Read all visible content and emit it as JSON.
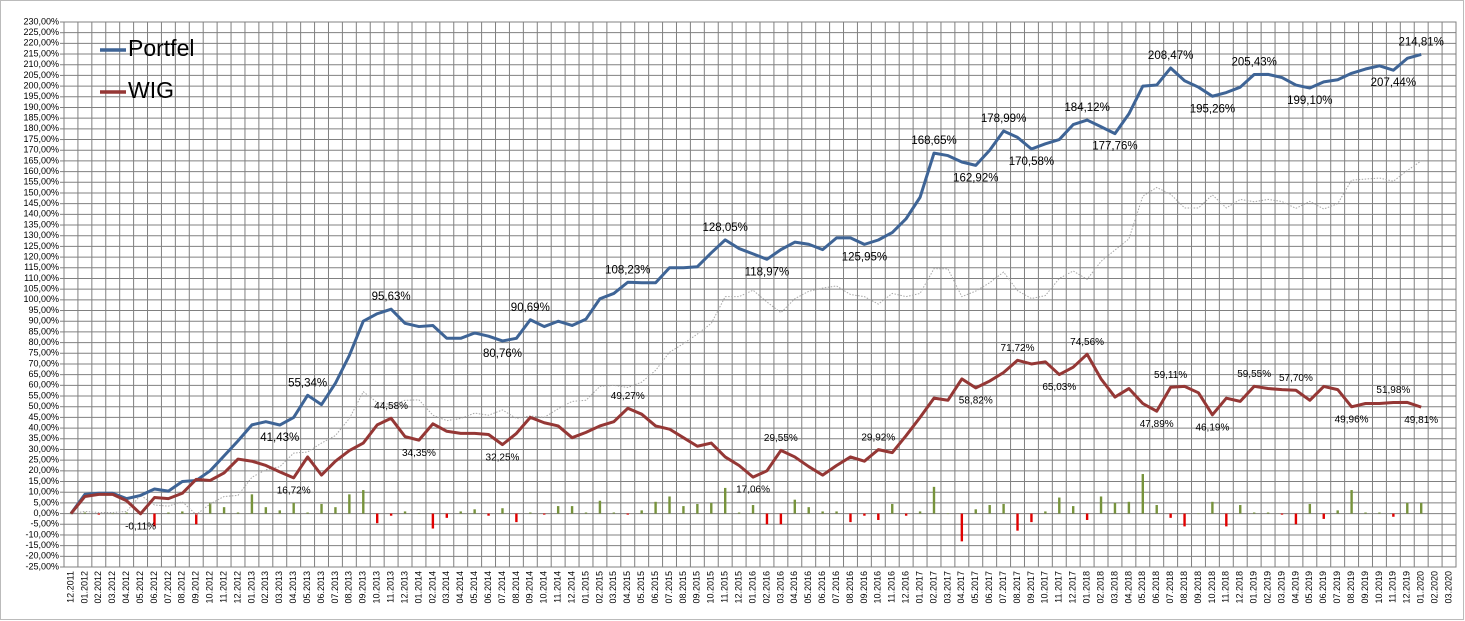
{
  "chart_data": {
    "type": "line",
    "legend": "upper left",
    "grid": true,
    "ylim": [
      -25,
      230
    ],
    "yticks": [
      {
        "value": -25,
        "label": "-25,00%"
      },
      {
        "value": -20,
        "label": "-20,00%"
      },
      {
        "value": -15,
        "label": "-15,00%"
      },
      {
        "value": -10,
        "label": "-10,00%"
      },
      {
        "value": -5,
        "label": "-5,00%"
      },
      {
        "value": 0,
        "label": "0,00%"
      },
      {
        "value": 5,
        "label": "5,00%"
      },
      {
        "value": 10,
        "label": "10,00%"
      },
      {
        "value": 15,
        "label": "15,00%"
      },
      {
        "value": 20,
        "label": "20,00%"
      },
      {
        "value": 25,
        "label": "25,00%"
      },
      {
        "value": 30,
        "label": "30,00%"
      },
      {
        "value": 35,
        "label": "35,00%"
      },
      {
        "value": 40,
        "label": "40,00%"
      },
      {
        "value": 45,
        "label": "45,00%"
      },
      {
        "value": 50,
        "label": "50,00%"
      },
      {
        "value": 55,
        "label": "55,00%"
      },
      {
        "value": 60,
        "label": "60,00%"
      },
      {
        "value": 65,
        "label": "65,00%"
      },
      {
        "value": 70,
        "label": "70,00%"
      },
      {
        "value": 75,
        "label": "75,00%"
      },
      {
        "value": 80,
        "label": "80,00%"
      },
      {
        "value": 85,
        "label": "85,00%"
      },
      {
        "value": 90,
        "label": "90,00%"
      },
      {
        "value": 95,
        "label": "95,00%"
      },
      {
        "value": 100,
        "label": "100,00%"
      },
      {
        "value": 105,
        "label": "105,00%"
      },
      {
        "value": 110,
        "label": "110,00%"
      },
      {
        "value": 115,
        "label": "115,00%"
      },
      {
        "value": 120,
        "label": "120,00%"
      },
      {
        "value": 125,
        "label": "125,00%"
      },
      {
        "value": 130,
        "label": "130,00%"
      },
      {
        "value": 135,
        "label": "135,00%"
      },
      {
        "value": 140,
        "label": "140,00%"
      },
      {
        "value": 145,
        "label": "145,00%"
      },
      {
        "value": 150,
        "label": "150,00%"
      },
      {
        "value": 155,
        "label": "155,00%"
      },
      {
        "value": 160,
        "label": "160,00%"
      },
      {
        "value": 165,
        "label": "165,00%"
      },
      {
        "value": 170,
        "label": "170,00%"
      },
      {
        "value": 175,
        "label": "175,00%"
      },
      {
        "value": 180,
        "label": "180,00%"
      },
      {
        "value": 185,
        "label": "185,00%"
      },
      {
        "value": 190,
        "label": "190,00%"
      },
      {
        "value": 195,
        "label": "195,00%"
      },
      {
        "value": 200,
        "label": "200,00%"
      },
      {
        "value": 205,
        "label": "205,00%"
      },
      {
        "value": 210,
        "label": "210,00%"
      },
      {
        "value": 215,
        "label": "215,00%"
      },
      {
        "value": 220,
        "label": "220,00%"
      },
      {
        "value": 225,
        "label": "225,00%"
      },
      {
        "value": 230,
        "label": "230,00%"
      }
    ],
    "categories": [
      "12.2011",
      "01.2012",
      "02.2012",
      "03.2012",
      "04.2012",
      "05.2012",
      "06.2012",
      "07.2012",
      "08.2012",
      "09.2012",
      "10.2012",
      "11.2012",
      "12.2012",
      "01.2013",
      "02.2013",
      "03.2013",
      "04.2013",
      "05.2013",
      "06.2013",
      "07.2013",
      "08.2013",
      "09.2013",
      "10.2013",
      "11.2013",
      "12.2013",
      "01.2014",
      "02.2014",
      "03.2014",
      "04.2014",
      "05.2014",
      "06.2014",
      "07.2014",
      "08.2014",
      "09.2014",
      "10.2014",
      "11.2014",
      "12.2014",
      "01.2015",
      "02.2015",
      "03.2015",
      "04.2015",
      "05.2015",
      "06.2015",
      "07.2015",
      "08.2015",
      "09.2015",
      "10.2015",
      "11.2015",
      "12.2015",
      "01.2016",
      "02.2016",
      "03.2016",
      "04.2016",
      "05.2016",
      "06.2016",
      "07.2016",
      "08.2016",
      "09.2016",
      "10.2016",
      "11.2016",
      "12.2016",
      "01.2017",
      "02.2017",
      "03.2017",
      "04.2017",
      "05.2017",
      "06.2017",
      "07.2017",
      "08.2017",
      "09.2017",
      "10.2017",
      "11.2017",
      "12.2017",
      "01.2018",
      "02.2018",
      "03.2018",
      "04.2018",
      "05.2018",
      "06.2018",
      "07.2018",
      "08.2018",
      "09.2018",
      "10.2018",
      "11.2018",
      "12.2018",
      "01.2019",
      "02.2019",
      "03.2019",
      "04.2019",
      "05.2019",
      "06.2019",
      "07.2019",
      "08.2019",
      "09.2019",
      "10.2019",
      "11.2019",
      "12.2019",
      "01.2020",
      "02.2020",
      "03.2020"
    ],
    "bars": {
      "color": "#77933c",
      "negative_color": "#e00000",
      "values": [
        0,
        0.5,
        -0.5,
        0,
        0.5,
        1,
        -6,
        0.5,
        1,
        -5,
        5,
        3,
        0.5,
        9,
        3,
        1.5,
        5,
        0.5,
        4.5,
        3,
        9,
        11,
        -4.5,
        -1,
        1,
        0.2,
        -7,
        -2,
        1,
        2,
        -1,
        2.5,
        -4,
        0.5,
        -0.5,
        3.5,
        3.5,
        0.5,
        6,
        0.5,
        -0.5,
        1.5,
        5.5,
        8,
        3.5,
        4.5,
        5,
        12,
        0.5,
        4,
        -5,
        -5,
        6.5,
        3,
        1,
        1,
        -4,
        -1,
        -3,
        4.5,
        -1,
        1,
        12.5,
        0,
        -13,
        2,
        4,
        4.5,
        -8,
        -4,
        1,
        7.5,
        3.5,
        -3,
        8,
        5,
        5.5,
        18.5,
        4,
        -2,
        -6,
        0,
        5.5,
        -6,
        4,
        0.5,
        0.5,
        -0.5,
        -5,
        4.5,
        -2.5,
        1.5,
        11,
        0.5,
        0.5,
        -1.5,
        5,
        5,
        null,
        null
      ]
    },
    "difference": {
      "color": "#a6a6a6",
      "values": [
        0,
        1,
        0.5,
        0.5,
        1,
        8.6,
        4,
        3.5,
        5.5,
        -0.5,
        4.5,
        8,
        8.5,
        17,
        20.5,
        21.9,
        28.3,
        28.8,
        33,
        36.5,
        44.5,
        57,
        52,
        51,
        53,
        53.2,
        46,
        43.5,
        44.5,
        47,
        46,
        48.5,
        44.5,
        45.7,
        45,
        49,
        52.5,
        53,
        59.5,
        60,
        59,
        61.5,
        67,
        75.5,
        79.5,
        84,
        89,
        101.5,
        101.5,
        104.5,
        99,
        94,
        100.5,
        104,
        105.5,
        106.5,
        102.5,
        101.5,
        98,
        103,
        101.5,
        103,
        114.6,
        114.5,
        101.5,
        104.1,
        108,
        113,
        104.3,
        100.6,
        102,
        110,
        113.5,
        109.6,
        118,
        123.3,
        128.5,
        148.5,
        152.6,
        149.4,
        143,
        143,
        149.1,
        143,
        147,
        145.9,
        147,
        146,
        142.8,
        146.1,
        142.5,
        145,
        156,
        156.5,
        157,
        155.5,
        160.5,
        165,
        null,
        null
      ]
    },
    "series": [
      {
        "name": "Portfel",
        "color": "#3e6496",
        "values": [
          0,
          9,
          9.5,
          9.5,
          7,
          8.5,
          11.5,
          10.5,
          15,
          15.5,
          20,
          27,
          34,
          41.5,
          43,
          41.43,
          45,
          55.34,
          51,
          61,
          74,
          90,
          93.5,
          95.63,
          89,
          87.5,
          88,
          82,
          82,
          84.5,
          83,
          80.76,
          82,
          90.69,
          87.5,
          90,
          88,
          91,
          100.5,
          103,
          108.23,
          108,
          108,
          115,
          115,
          115.5,
          122,
          128.05,
          124,
          121.5,
          118.97,
          123.5,
          127,
          126,
          123.5,
          129,
          129,
          125.95,
          128,
          131.5,
          138,
          148,
          168.65,
          167.5,
          164.5,
          162.92,
          170,
          178.99,
          176,
          170.58,
          173,
          175,
          182,
          184.12,
          181,
          177.76,
          187,
          200,
          200.5,
          208.47,
          202.5,
          199.5,
          195.26,
          197,
          199.5,
          205.43,
          205.5,
          204,
          200.5,
          199.1,
          202,
          203,
          206,
          208,
          209.5,
          207.44,
          213,
          214.81,
          null,
          null
        ],
        "value_labels": [
          null,
          null,
          null,
          null,
          null,
          null,
          null,
          null,
          null,
          null,
          null,
          null,
          null,
          null,
          null,
          "41,43%",
          null,
          "55,34%",
          null,
          null,
          null,
          null,
          null,
          "95,63%",
          null,
          null,
          null,
          null,
          null,
          null,
          null,
          "80,76%",
          null,
          "90,69%",
          null,
          null,
          null,
          null,
          null,
          null,
          "108,23%",
          null,
          null,
          null,
          null,
          null,
          null,
          "128,05%",
          null,
          null,
          "118,97%",
          null,
          null,
          null,
          null,
          null,
          null,
          "125,95%",
          null,
          null,
          null,
          null,
          "168,65%",
          null,
          null,
          "162,92%",
          null,
          "178,99%",
          null,
          "170,58%",
          null,
          null,
          null,
          "184,12%",
          null,
          "177,76%",
          null,
          null,
          null,
          "208,47%",
          null,
          null,
          "195,26%",
          null,
          null,
          "205,43%",
          null,
          null,
          null,
          "199,10%",
          null,
          null,
          null,
          null,
          null,
          "207,44%",
          null,
          "214,81%",
          null,
          null
        ]
      },
      {
        "name": "WIG",
        "color": "#953735",
        "values": [
          0,
          8,
          9,
          9,
          6,
          -0.11,
          7.5,
          7,
          9.5,
          16,
          15.5,
          19,
          25.5,
          24.5,
          22.5,
          19.5,
          16.72,
          26.5,
          18,
          24.5,
          29.5,
          33,
          41.5,
          44.58,
          36,
          34.35,
          42,
          38.5,
          37.5,
          37.5,
          37,
          32.25,
          37.5,
          45,
          42.5,
          41,
          35.5,
          38,
          41,
          43,
          49.27,
          46.5,
          41,
          39.5,
          35.5,
          31.5,
          33,
          26.5,
          22.5,
          17.06,
          20,
          29.55,
          26.5,
          22,
          18,
          22.5,
          26.5,
          24.5,
          29.92,
          28.5,
          36.5,
          45,
          54,
          53,
          63,
          58.82,
          62,
          66,
          71.72,
          70,
          71,
          65.03,
          68.5,
          74.56,
          63,
          54.5,
          58.5,
          51.5,
          47.89,
          59.11,
          59.5,
          56.5,
          46.19,
          54,
          52.5,
          59.55,
          58.5,
          58,
          57.7,
          53,
          59.5,
          58,
          49.96,
          51.5,
          51.5,
          51.98,
          52,
          49.81,
          null,
          null
        ],
        "value_labels": [
          null,
          null,
          null,
          null,
          null,
          "-0,11%",
          null,
          null,
          null,
          null,
          null,
          null,
          null,
          null,
          null,
          null,
          "16,72%",
          null,
          null,
          null,
          null,
          null,
          null,
          "44,58%",
          null,
          "34,35%",
          null,
          null,
          null,
          null,
          null,
          "32,25%",
          null,
          null,
          null,
          null,
          null,
          null,
          null,
          null,
          "49,27%",
          null,
          null,
          null,
          null,
          null,
          null,
          null,
          null,
          "17,06%",
          null,
          "29,55%",
          null,
          null,
          null,
          null,
          null,
          null,
          "29,92%",
          null,
          null,
          null,
          null,
          null,
          null,
          "58,82%",
          null,
          null,
          "71,72%",
          null,
          null,
          "65,03%",
          null,
          "74,56%",
          null,
          null,
          null,
          null,
          "47,89%",
          "59,11%",
          null,
          null,
          "46,19%",
          null,
          null,
          "59,55%",
          null,
          null,
          "57,70%",
          null,
          null,
          null,
          "49,96%",
          null,
          null,
          "51,98%",
          null,
          "49,81%",
          null,
          null
        ]
      }
    ]
  }
}
